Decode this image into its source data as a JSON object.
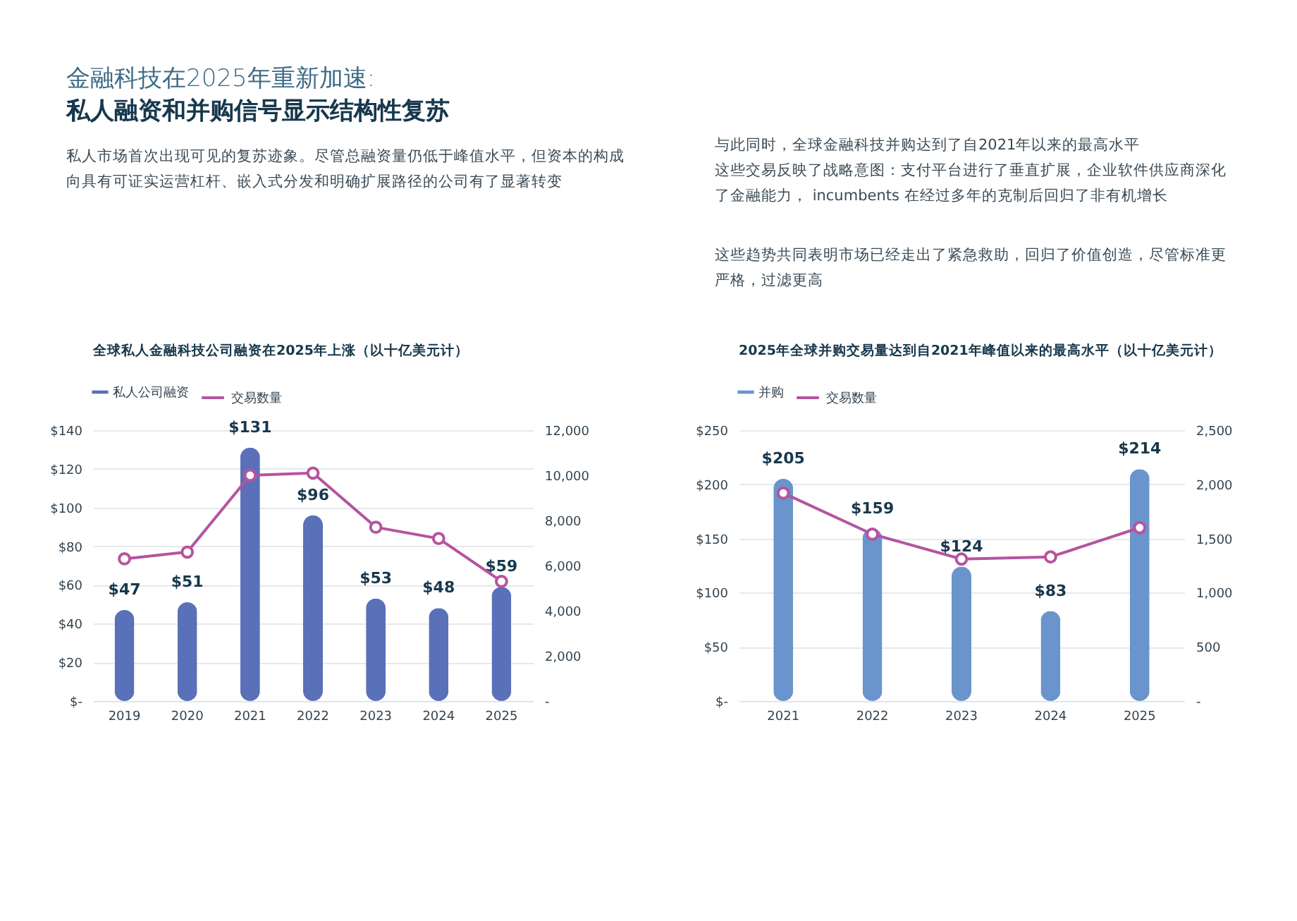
{
  "chart_data": [
    {
      "type": "bar",
      "title": "全球私人金融科技公司融资在2025年上涨（以十亿美元计）",
      "annotations": [
        "金融科技在2025年重新加速:",
        "私人融资和并购信号显示结构性复苏",
        "私人市场首次出现可见的复苏迹象。尽管总融资量仍低于峰值水平，但资本的构成向具有可证实运营杠杆、嵌入式分发和明确扩展路径的公司有了显著转变"
      ],
      "categories": [
        "2019",
        "2020",
        "2021",
        "2022",
        "2023",
        "2024",
        "2025"
      ],
      "series": [
        {
          "name": "私人公司融资",
          "color": "#5a70b8",
          "values": [
            47,
            51,
            131,
            96,
            53,
            48,
            59
          ],
          "value_labels": [
            "$47",
            "$51",
            "$131",
            "$96",
            "$53",
            "$48",
            "$59"
          ]
        },
        {
          "name": "交易数量",
          "type": "line",
          "axis": "y2",
          "color": "#b5549f",
          "values": [
            6300,
            6600,
            10000,
            10100,
            7700,
            7200,
            5300
          ]
        }
      ],
      "ylim": [
        0,
        140
      ],
      "yticks": [
        {
          "value": 0,
          "label": "$-"
        },
        {
          "value": 20,
          "label": "$20"
        },
        {
          "value": 40,
          "label": "$40"
        },
        {
          "value": 60,
          "label": "$60"
        },
        {
          "value": 80,
          "label": "$80"
        },
        {
          "value": 100,
          "label": "$100"
        },
        {
          "value": 120,
          "label": "$120"
        },
        {
          "value": 140,
          "label": "$140"
        }
      ],
      "y2lim": [
        0,
        12000
      ],
      "y2ticks": [
        {
          "value": 0,
          "label": "-"
        },
        {
          "value": 2000,
          "label": "2,000"
        },
        {
          "value": 4000,
          "label": "4,000"
        },
        {
          "value": 6000,
          "label": "6,000"
        },
        {
          "value": 8000,
          "label": "8,000"
        },
        {
          "value": 10000,
          "label": "10,000"
        },
        {
          "value": 12000,
          "label": "12,000"
        }
      ],
      "grid": "y",
      "legend": "top left",
      "marker": "circle"
    },
    {
      "type": "bar",
      "title": "2025年全球并购交易量达到自2021年峰值以来的最高水平（以十亿美元计）",
      "annotations": [
        "与此同时，全球金融科技并购达到了自2021年以来的最高水平",
        "这些交易反映了战略意图：支付平台进行了垂直扩展，企业软件供应商深化了金融能力， incumbents 在经过多年的克制后回归了非有机增长",
        "这些趋势共同表明市场已经走出了紧急救助，回归了价值创造，尽管标准更严格，过滤更高"
      ],
      "categories": [
        "2021",
        "2022",
        "2023",
        "2024",
        "2025"
      ],
      "series": [
        {
          "name": "并购",
          "color": "#6a94cc",
          "values": [
            205,
            159,
            124,
            83,
            214
          ],
          "value_labels": [
            "$205",
            "$159",
            "$124",
            "$83",
            "$214"
          ]
        },
        {
          "name": "交易数量",
          "type": "line",
          "axis": "y2",
          "color": "#b5549f",
          "values": [
            1920,
            1540,
            1310,
            1330,
            1600
          ]
        }
      ],
      "ylim": [
        0,
        250
      ],
      "yticks": [
        {
          "value": 0,
          "label": "$-"
        },
        {
          "value": 50,
          "label": "$50"
        },
        {
          "value": 100,
          "label": "$100"
        },
        {
          "value": 150,
          "label": "$150"
        },
        {
          "value": 200,
          "label": "$200"
        },
        {
          "value": 250,
          "label": "$250"
        }
      ],
      "y2lim": [
        0,
        2500
      ],
      "y2ticks": [
        {
          "value": 0,
          "label": "-"
        },
        {
          "value": 500,
          "label": "500"
        },
        {
          "value": 1000,
          "label": "1,000"
        },
        {
          "value": 1500,
          "label": "1,500"
        },
        {
          "value": 2000,
          "label": "2,000"
        },
        {
          "value": 2500,
          "label": "2,500"
        }
      ],
      "grid": "y",
      "legend": "top left",
      "marker": "circle"
    }
  ]
}
